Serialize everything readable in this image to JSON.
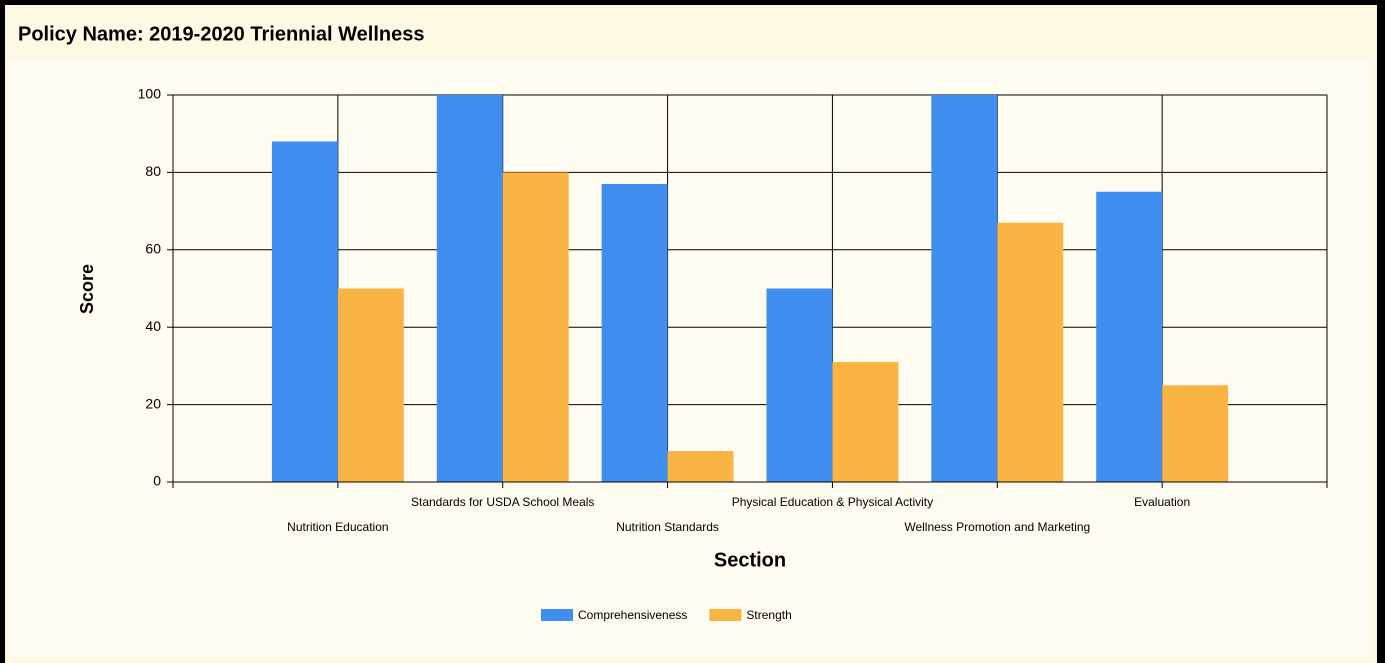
{
  "chart_data": {
    "type": "bar",
    "title": "Policy Name: 2019-2020 Triennial Wellness",
    "x_label": "Section",
    "y_label": "Score",
    "categories": [
      "Nutrition Education",
      "Standards for USDA School Meals",
      "Nutrition Standards",
      "Physical Education & Physical Activity",
      "Wellness Promotion and Marketing",
      "Evaluation"
    ],
    "series": [
      {
        "name": "Comprehensiveness",
        "color": "#3f8ef0",
        "values": [
          88,
          100,
          77,
          50,
          100,
          75
        ]
      },
      {
        "name": "Strength",
        "color": "#f9b444",
        "values": [
          50,
          80,
          8,
          31,
          67,
          25
        ]
      }
    ],
    "ylim": [
      0,
      100
    ],
    "yticks": [
      0,
      20,
      40,
      60,
      80,
      100
    ],
    "grid": true,
    "legend": "bottom"
  }
}
